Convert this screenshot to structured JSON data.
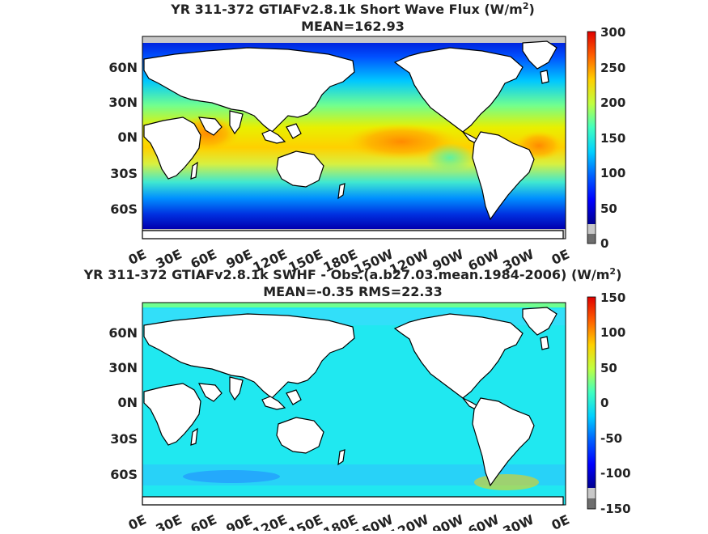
{
  "panels": [
    {
      "title_line1": "YR 311-372 GTIAFv2.8.1k  Short Wave Flux (W/m",
      "title_sup": "2",
      "title_end": ")",
      "title_line2": "MEAN=162.93",
      "lat_labels": [
        "60N",
        "30N",
        "0N",
        "30S",
        "60S"
      ],
      "lon_labels": [
        "0E",
        "30E",
        "60E",
        "90E",
        "120E",
        "150E",
        "180E",
        "150W",
        "120W",
        "90W",
        "60W",
        "30W",
        "0E"
      ],
      "colorbar_ticks": [
        "300",
        "250",
        "200",
        "150",
        "100",
        "50",
        "0"
      ],
      "range": [
        0,
        300
      ]
    },
    {
      "title_line1": "YR 311-372 GTIAFv2.8.1k SWHF - Obs.(a.b27.03.mean.1984-2006) (W/m",
      "title_sup": "2",
      "title_end": ")",
      "title_line2": "MEAN=-0.35 RMS=22.33",
      "lat_labels": [
        "60N",
        "30N",
        "0N",
        "30S",
        "60S"
      ],
      "lon_labels": [
        "0E",
        "30E",
        "60E",
        "90E",
        "120E",
        "150E",
        "180E",
        "150W",
        "120W",
        "90W",
        "60W",
        "30W",
        "0E"
      ],
      "colorbar_ticks": [
        "150",
        "100",
        "50",
        "0",
        "-50",
        "-100",
        "-150"
      ],
      "range": [
        -150,
        150
      ]
    }
  ],
  "colors": {
    "land": "#ffffff",
    "coast": "#000000",
    "missing": "#c8c8c8",
    "colorbar_low": "#6e6e6e",
    "colorbar_stops": [
      "#00008f",
      "#0000ff",
      "#0080ff",
      "#00ffff",
      "#80ff80",
      "#ffff00",
      "#ff8000",
      "#ff0000",
      "#800000"
    ]
  }
}
